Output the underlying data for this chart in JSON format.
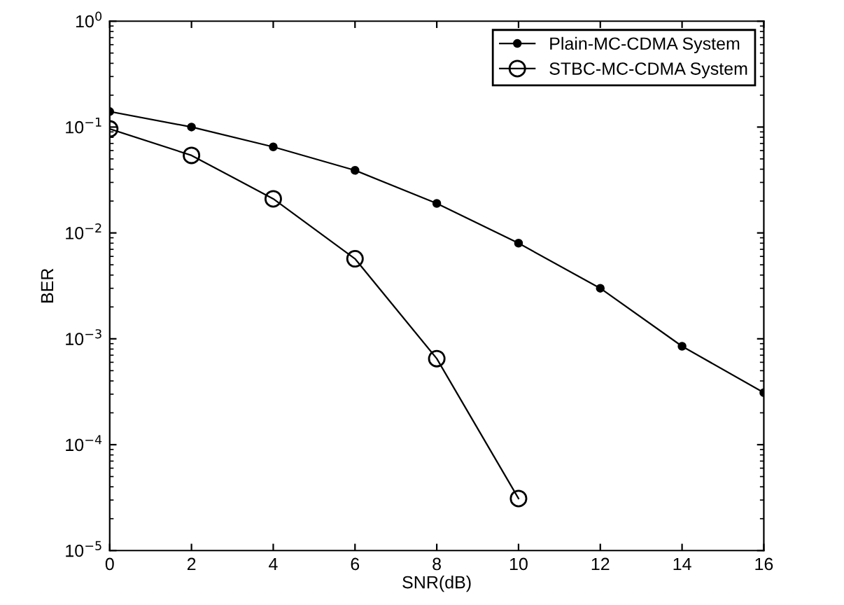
{
  "chart_data": {
    "type": "line",
    "xlabel": "SNR(dB)",
    "ylabel": "BER",
    "log": "y",
    "grid": false,
    "legend": "top right",
    "line_style": "solid",
    "xlim": [
      0,
      16
    ],
    "xticks": [
      0,
      2,
      4,
      6,
      8,
      10,
      12,
      14,
      16
    ],
    "ylim": [
      1e-05,
      1
    ],
    "yticks": [
      {
        "value": 1e-05,
        "label": "10$^{−5}$"
      },
      {
        "value": 0.0001,
        "label": "10$^{−4}$"
      },
      {
        "value": 0.001,
        "label": "10$^{−3}$"
      },
      {
        "value": 0.01,
        "label": "10$^{−2}$"
      },
      {
        "value": 0.1,
        "label": "10$^{−1}$"
      },
      {
        "value": 1,
        "label": "10$^{0}$"
      }
    ],
    "series": [
      {
        "name": "Plain-MC-CDMA System",
        "color": "#000000",
        "marker": "circle",
        "x": [
          0,
          2,
          4,
          6,
          8,
          10,
          12,
          14,
          16
        ],
        "values": [
          0.14,
          0.1,
          0.065,
          0.039,
          0.019,
          0.008,
          0.003,
          0.00085,
          0.00031
        ]
      },
      {
        "name": "STBC-MC-CDMA System",
        "color": "#000000",
        "marker": "circle",
        "x": [
          0,
          2,
          4,
          6,
          8,
          10
        ],
        "values": [
          0.096,
          0.054,
          0.021,
          0.0057,
          0.00065,
          3.1e-05
        ]
      }
    ]
  }
}
